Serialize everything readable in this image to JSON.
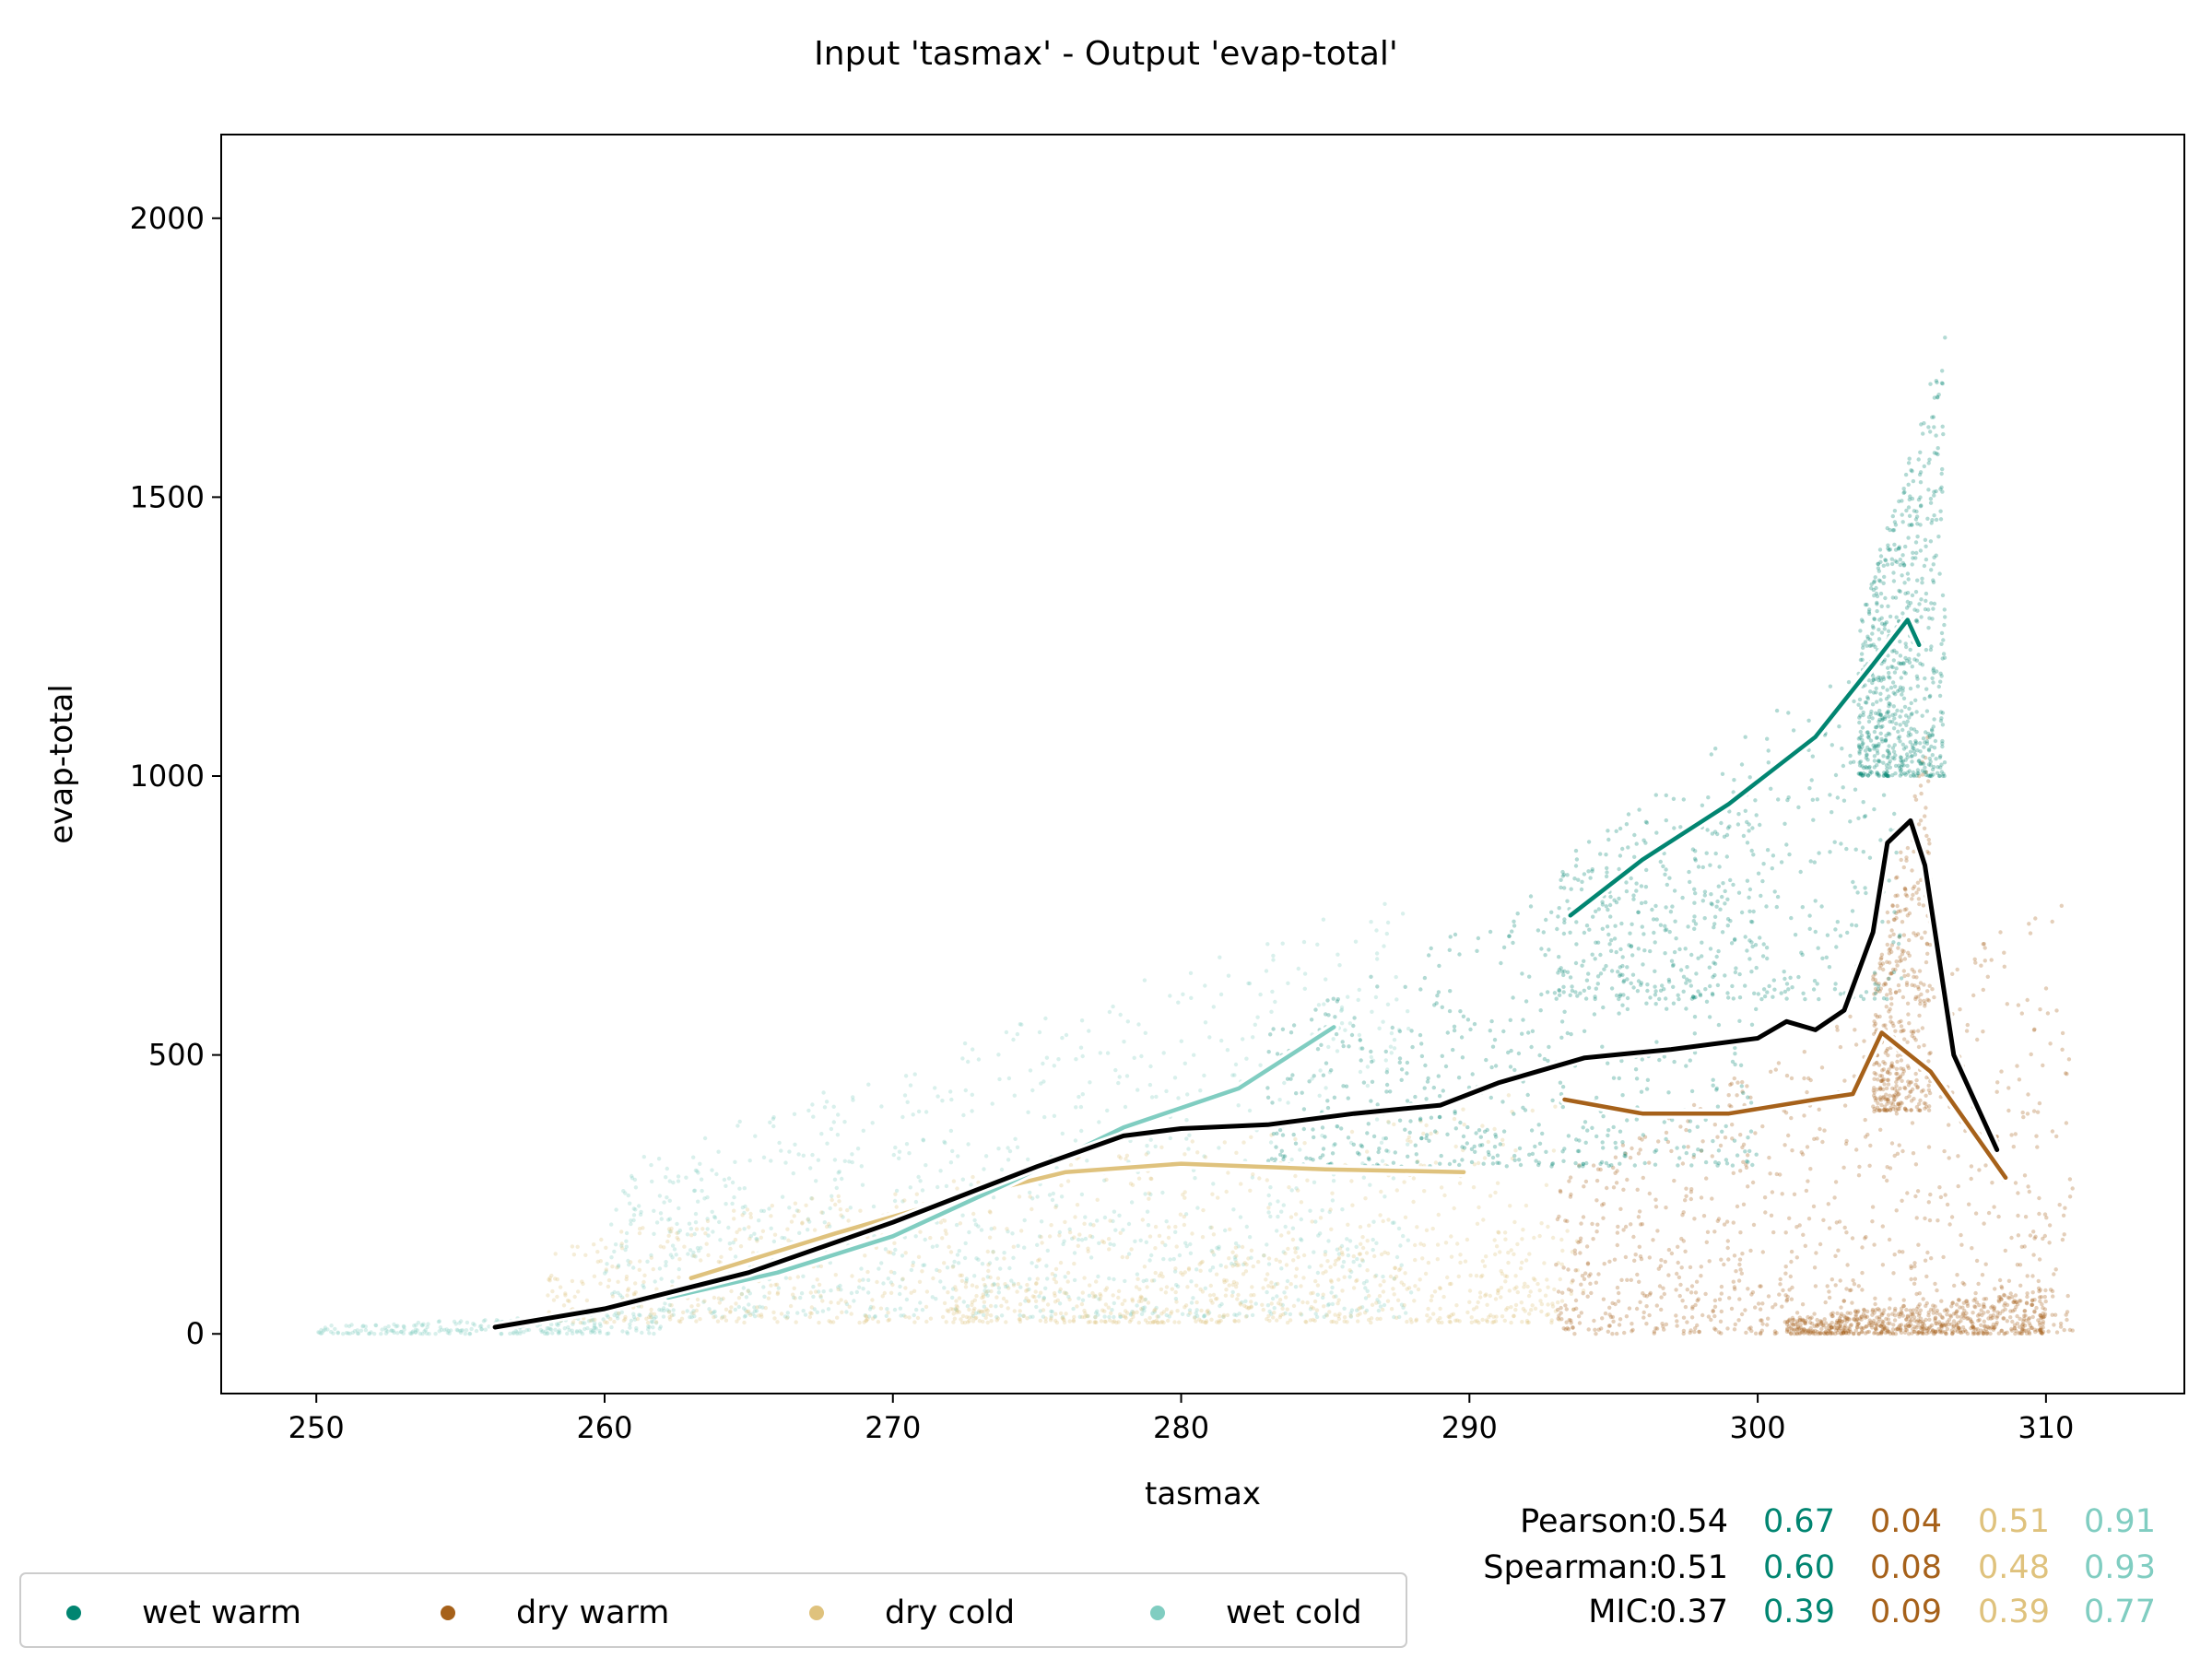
{
  "chart_data": {
    "type": "scatter",
    "title": "Input 'tasmax' - Output 'evap-total'",
    "xlabel": "tasmax",
    "ylabel": "evap-total",
    "xlim": [
      246.7,
      314.8
    ],
    "ylim": [
      -107,
      2150
    ],
    "xticks": [
      250,
      260,
      270,
      280,
      290,
      300,
      310
    ],
    "yticks": [
      0,
      500,
      1000,
      1500,
      2000
    ],
    "grid": false,
    "legend_position": "bottom-left",
    "series": [
      {
        "name": "wet warm",
        "color": "#018571",
        "cloud": [
          {
            "x": [
              293,
              305
            ],
            "y": [
              600,
              1300
            ],
            "n": 500
          },
          {
            "x": [
              303.5,
              306.5
            ],
            "y": [
              1000,
              1800
            ],
            "n": 700
          },
          {
            "x": [
              283,
              300
            ],
            "y": [
              300,
              1000
            ],
            "n": 600
          }
        ],
        "trend": [
          [
            293.5,
            750
          ],
          [
            296,
            850
          ],
          [
            299,
            950
          ],
          [
            302,
            1070
          ],
          [
            304,
            1200
          ],
          [
            305.2,
            1280
          ],
          [
            305.6,
            1235
          ]
        ]
      },
      {
        "name": "dry warm",
        "color": "#a6611a",
        "cloud": [
          {
            "x": [
              293,
              311
            ],
            "y": [
              0,
              800
            ],
            "n": 900
          },
          {
            "x": [
              301,
              310
            ],
            "y": [
              0,
              80
            ],
            "n": 600
          },
          {
            "x": [
              304,
              306
            ],
            "y": [
              400,
              1100
            ],
            "n": 400
          }
        ],
        "trend": [
          [
            293.3,
            420
          ],
          [
            296,
            395
          ],
          [
            299,
            395
          ],
          [
            302,
            420
          ],
          [
            303.3,
            430
          ],
          [
            304.3,
            540
          ],
          [
            306,
            470
          ],
          [
            308.6,
            280
          ]
        ]
      },
      {
        "name": "dry cold",
        "color": "#dfc27d",
        "cloud": [
          {
            "x": [
              258,
              293
            ],
            "y": [
              20,
              450
            ],
            "n": 900
          },
          {
            "x": [
              272,
              294
            ],
            "y": [
              20,
              200
            ],
            "n": 400
          }
        ],
        "trend": [
          [
            263,
            100
          ],
          [
            268,
            180
          ],
          [
            272,
            240
          ],
          [
            276,
            290
          ],
          [
            280,
            305
          ],
          [
            285,
            295
          ],
          [
            289.8,
            290
          ]
        ]
      },
      {
        "name": "wet cold",
        "color": "#80cdc1",
        "cloud": [
          {
            "x": [
              250,
              262
            ],
            "y": [
              0,
              40
            ],
            "n": 250
          },
          {
            "x": [
              260,
              288
            ],
            "y": [
              30,
              800
            ],
            "n": 1100
          }
        ],
        "trend": [
          [
            262.2,
            65
          ],
          [
            266,
            110
          ],
          [
            270,
            175
          ],
          [
            274,
            270
          ],
          [
            278,
            370
          ],
          [
            282,
            440
          ],
          [
            285.3,
            550
          ]
        ]
      }
    ],
    "overall_trend": {
      "color": "#000000",
      "points": [
        [
          256.2,
          12
        ],
        [
          260,
          45
        ],
        [
          265,
          110
        ],
        [
          270,
          200
        ],
        [
          275,
          300
        ],
        [
          278,
          355
        ],
        [
          280,
          368
        ],
        [
          283,
          375
        ],
        [
          286,
          395
        ],
        [
          289,
          410
        ],
        [
          291,
          450
        ],
        [
          294,
          495
        ],
        [
          297,
          510
        ],
        [
          300,
          530
        ],
        [
          301,
          560
        ],
        [
          302,
          545
        ],
        [
          303,
          580
        ],
        [
          304,
          720
        ],
        [
          304.5,
          880
        ],
        [
          305.3,
          920
        ],
        [
          305.8,
          840
        ],
        [
          306.8,
          500
        ],
        [
          308.3,
          330
        ]
      ]
    },
    "stats": {
      "rows": [
        {
          "label": "Pearson:",
          "overall": "0.54",
          "values": [
            "0.67",
            "0.04",
            "0.51",
            "0.91"
          ]
        },
        {
          "label": "Spearman:",
          "overall": "0.51",
          "values": [
            "0.60",
            "0.08",
            "0.48",
            "0.93"
          ]
        },
        {
          "label": "MIC:",
          "overall": "0.37",
          "values": [
            "0.39",
            "0.09",
            "0.39",
            "0.77"
          ]
        }
      ]
    }
  }
}
